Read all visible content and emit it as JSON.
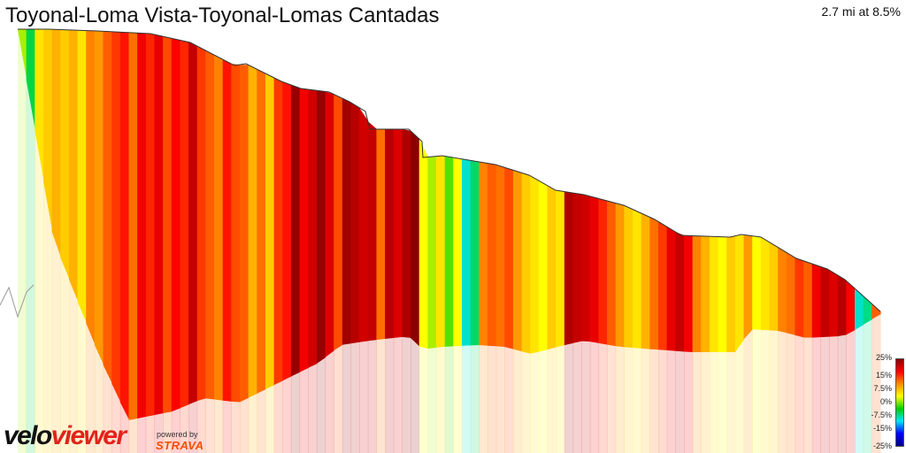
{
  "header": {
    "title": "Toyonal-Loma Vista-Toyonal-Lomas Cantadas",
    "summary": "2.7 mi at 8.5%"
  },
  "branding": {
    "logo_part1": "velo",
    "logo_part2": "viewer",
    "powered_by": "powered by",
    "strava": "STRAVA"
  },
  "colors": {
    "logo_red": "#e2231a",
    "strava_orange": "#fc4c02",
    "legend_gradient": [
      "#8b0000",
      "#ff0000",
      "#ff8c00",
      "#ffff00",
      "#00d000",
      "#00e5ff",
      "#0000ff",
      "#00008b"
    ]
  },
  "chart_data": {
    "type": "area",
    "title": "Toyonal-Loma Vista-Toyonal-Lomas Cantadas",
    "subtitle": "2.7 mi at 8.5%",
    "style": "3D elevation profile, segments colored by gradient",
    "distance_mi": 2.7,
    "avg_grade_pct": 8.5,
    "legend": {
      "position": "bottom-right",
      "ticks": [
        "25%",
        "15%",
        "7.5%",
        "0%",
        "-7.5%",
        "-15%",
        "-25%"
      ],
      "values": [
        25,
        15,
        7.5,
        0,
        -7.5,
        -15,
        -25
      ]
    },
    "grade_segments": [
      {
        "grade": 2
      },
      {
        "grade": -2
      },
      {
        "grade": 4
      },
      {
        "grade": 5
      },
      {
        "grade": 6
      },
      {
        "grade": 5
      },
      {
        "grade": 6
      },
      {
        "grade": 4
      },
      {
        "grade": 8
      },
      {
        "grade": 7
      },
      {
        "grade": 10
      },
      {
        "grade": 12
      },
      {
        "grade": 14
      },
      {
        "grade": 9
      },
      {
        "grade": 16
      },
      {
        "grade": 13
      },
      {
        "grade": 17
      },
      {
        "grade": 11
      },
      {
        "grade": 15
      },
      {
        "grade": 13
      },
      {
        "grade": 20
      },
      {
        "grade": 12
      },
      {
        "grade": 10
      },
      {
        "grade": 8
      },
      {
        "grade": 14
      },
      {
        "grade": 11
      },
      {
        "grade": 10
      },
      {
        "grade": 6
      },
      {
        "grade": 9
      },
      {
        "grade": 5
      },
      {
        "grade": 12
      },
      {
        "grade": 14
      },
      {
        "grade": 24
      },
      {
        "grade": 16
      },
      {
        "grade": 19
      },
      {
        "grade": 24
      },
      {
        "grade": 18
      },
      {
        "grade": 11
      },
      {
        "grade": 23
      },
      {
        "grade": 21
      },
      {
        "grade": 19
      },
      {
        "grade": 20
      },
      {
        "grade": 9
      },
      {
        "grade": 21
      },
      {
        "grade": 18
      },
      {
        "grade": 22
      },
      {
        "grade": 25
      },
      {
        "grade": 3
      },
      {
        "grade": 2
      },
      {
        "grade": 4
      },
      {
        "grade": 1
      },
      {
        "grade": 3
      },
      {
        "grade": -6
      },
      {
        "grade": -3
      },
      {
        "grade": 8
      },
      {
        "grade": 10
      },
      {
        "grade": 9
      },
      {
        "grade": 11
      },
      {
        "grade": 7
      },
      {
        "grade": 5
      },
      {
        "grade": 4
      },
      {
        "grade": 3
      },
      {
        "grade": 5
      },
      {
        "grade": 4
      },
      {
        "grade": 22
      },
      {
        "grade": 20
      },
      {
        "grade": 19
      },
      {
        "grade": 17
      },
      {
        "grade": 13
      },
      {
        "grade": 10
      },
      {
        "grade": 7
      },
      {
        "grade": 5
      },
      {
        "grade": 4
      },
      {
        "grade": 6
      },
      {
        "grade": 9
      },
      {
        "grade": 12
      },
      {
        "grade": 17
      },
      {
        "grade": 20
      },
      {
        "grade": 16
      },
      {
        "grade": 8
      },
      {
        "grade": 6
      },
      {
        "grade": 4
      },
      {
        "grade": 3
      },
      {
        "grade": 5
      },
      {
        "grade": 4
      },
      {
        "grade": 7
      },
      {
        "grade": 3
      },
      {
        "grade": 4
      },
      {
        "grade": 5
      },
      {
        "grade": 8
      },
      {
        "grade": 9
      },
      {
        "grade": 12
      },
      {
        "grade": 10
      },
      {
        "grade": 16
      },
      {
        "grade": 20
      },
      {
        "grade": 18
      },
      {
        "grade": 21
      },
      {
        "grade": 15
      },
      {
        "grade": -6
      },
      {
        "grade": -4
      },
      {
        "grade": 10
      }
    ]
  }
}
